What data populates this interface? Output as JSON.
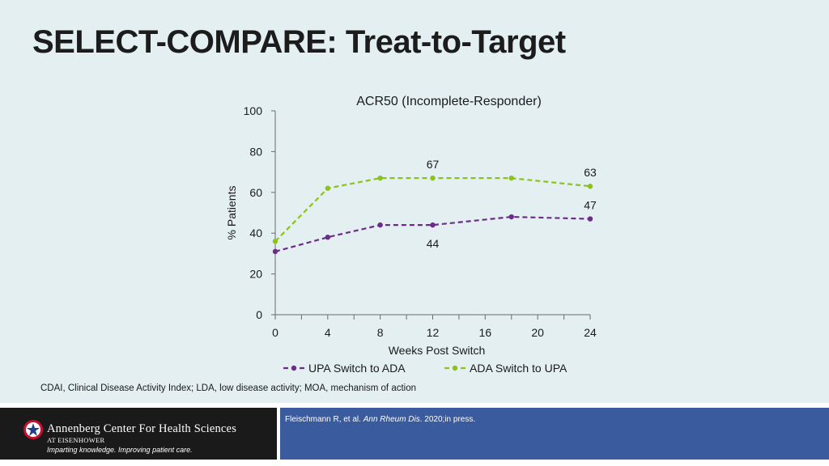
{
  "slide": {
    "title": "SELECT-COMPARE: Treat-to-Target",
    "footnote": "CDAI, Clinical Disease Activity Index; LDA, low disease activity; MOA, mechanism of action"
  },
  "footer": {
    "org_name": "Annenberg Center For Health Sciences",
    "org_sub": "AT EISENHOWER",
    "tagline": "Imparting knowledge. Improving patient care.",
    "citation_authors": "Fleischmann R, et al. ",
    "citation_journal": "Ann Rheum Dis",
    "citation_rest": ". 2020;in press."
  },
  "chart_data": {
    "type": "line",
    "title": "ACR50 (Incomplete-Responder)",
    "xlabel": "Weeks Post Switch",
    "ylabel": "% Patients",
    "xlim": [
      0,
      24
    ],
    "ylim": [
      0,
      100
    ],
    "x_ticks": [
      0,
      4,
      8,
      12,
      16,
      20,
      24
    ],
    "y_ticks": [
      0,
      20,
      40,
      60,
      80,
      100
    ],
    "grid": false,
    "legend_position": "bottom",
    "series": [
      {
        "name": "UPA Switch to ADA",
        "color": "#6b2d87",
        "x": [
          0,
          4,
          8,
          12,
          18,
          24
        ],
        "y": [
          31,
          38,
          44,
          44,
          48,
          47
        ]
      },
      {
        "name": "ADA Switch to UPA",
        "color": "#8cc21e",
        "x": [
          0,
          4,
          8,
          12,
          18,
          24
        ],
        "y": [
          36,
          62,
          67,
          67,
          67,
          63
        ]
      }
    ],
    "annotations": [
      {
        "text": "67",
        "series": 1,
        "x": 12,
        "y": 67,
        "placement": "above"
      },
      {
        "text": "63",
        "series": 1,
        "x": 24,
        "y": 63,
        "placement": "above"
      },
      {
        "text": "44",
        "series": 0,
        "x": 12,
        "y": 44,
        "placement": "below"
      },
      {
        "text": "47",
        "series": 0,
        "x": 24,
        "y": 47,
        "placement": "above"
      }
    ]
  }
}
